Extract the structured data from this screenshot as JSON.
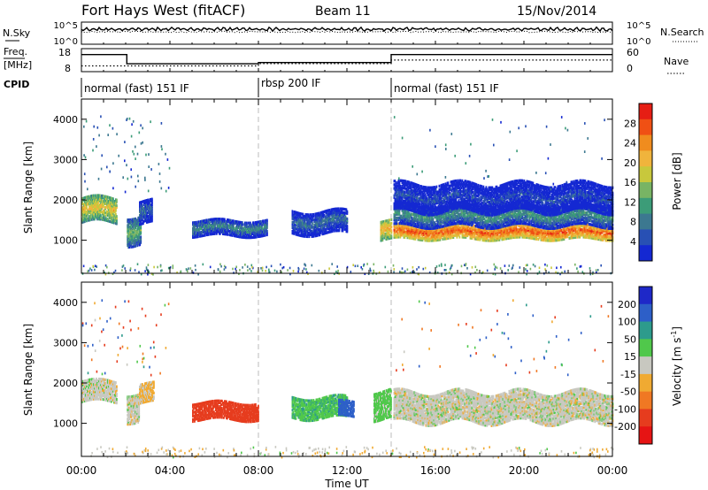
{
  "header": {
    "station": "Fort Hays West (fitACF)",
    "beam": "Beam 11",
    "date": "15/Nov/2014"
  },
  "chart_data": [
    {
      "type": "line",
      "panel": "noise",
      "left_label": "N.Sky",
      "right_label": "N.Search",
      "left_ticks": [
        "10^5",
        "10^0"
      ],
      "right_ticks": [
        "10^5",
        "10^0"
      ]
    },
    {
      "type": "line",
      "panel": "frequency",
      "left_label_top": "Freq.",
      "left_label_bottom": "[MHz]",
      "left_ticks": [
        18,
        8
      ],
      "right_label": "Nave",
      "right_ticks": [
        60,
        0
      ],
      "freq_series": [
        {
          "x": 0,
          "y": 16.5
        },
        {
          "x": 2.05,
          "y": 16.5
        },
        {
          "x": 2.05,
          "y": 10.7
        },
        {
          "x": 8.0,
          "y": 10.7
        },
        {
          "x": 8.0,
          "y": 11.5
        },
        {
          "x": 14.0,
          "y": 11.5
        },
        {
          "x": 14.0,
          "y": 16.5
        },
        {
          "x": 24,
          "y": 16.5
        }
      ],
      "nave_series": [
        {
          "x": 0,
          "y": 15
        },
        {
          "x": 8.0,
          "y": 15
        },
        {
          "x": 8.0,
          "y": 22
        },
        {
          "x": 14.0,
          "y": 22
        },
        {
          "x": 14.0,
          "y": 33
        },
        {
          "x": 24,
          "y": 33
        }
      ]
    },
    {
      "type": "table",
      "panel": "cpid",
      "label": "CPID",
      "segments": [
        {
          "start": 0,
          "end": 8.0,
          "label": "normal (fast) 151 IF"
        },
        {
          "start": 8.0,
          "end": 14.0,
          "label": "rbsp 200 IF"
        },
        {
          "start": 14.0,
          "end": 24,
          "label": "normal (fast) 151 IF"
        }
      ]
    },
    {
      "type": "heatmap",
      "panel": "power",
      "ylabel": "Slant Range [km]",
      "yticks": [
        1000,
        2000,
        3000,
        4000
      ],
      "ylim": [
        180,
        4500
      ],
      "colorbar_label": "Power [dB]",
      "colorbar_ticks": [
        4,
        8,
        12,
        16,
        20,
        24,
        28
      ],
      "colorbar_range": [
        0,
        32
      ],
      "colors": [
        "#1428d2",
        "#2850b4",
        "#3c7890",
        "#3c9c78",
        "#78b464",
        "#c8c83c",
        "#f0b43c",
        "#f08c1e",
        "#f05014",
        "#e61e14"
      ],
      "features": [
        {
          "t0": 0.0,
          "t1": 1.6,
          "r_center": 1800,
          "r_half": 320,
          "value": 20
        },
        {
          "t0": 2.05,
          "t1": 2.7,
          "r_center": 1300,
          "r_half": 350,
          "value": 14
        },
        {
          "t0": 2.6,
          "t1": 3.2,
          "r_center": 1750,
          "r_half": 300,
          "value": 8
        },
        {
          "t0": 5.0,
          "t1": 8.4,
          "r_center": 1350,
          "r_half": 200,
          "value": 10
        },
        {
          "t0": 9.5,
          "t1": 12.0,
          "r_center": 1500,
          "r_half": 300,
          "value": 8
        },
        {
          "t0": 13.5,
          "t1": 14.0,
          "r_center": 1300,
          "r_half": 250,
          "value": 22
        },
        {
          "t0": 14.1,
          "t1": 24.0,
          "r_center": 1250,
          "r_half": 180,
          "value": 27
        },
        {
          "t0": 14.1,
          "t1": 24.0,
          "r_center": 1650,
          "r_half": 260,
          "value": 11
        },
        {
          "t0": 14.1,
          "t1": 24.0,
          "r_center": 2100,
          "r_half": 350,
          "value": 5
        }
      ]
    },
    {
      "type": "heatmap",
      "panel": "velocity",
      "ylabel": "Slant Range [km]",
      "yticks": [
        1000,
        2000,
        3000,
        4000
      ],
      "ylim": [
        180,
        4500
      ],
      "colorbar_label": "Velocity [m s",
      "colorbar_label_sup": "-1",
      "colorbar_label_end": "]",
      "colorbar_ticks": [
        200,
        100,
        50,
        15,
        -15,
        -50,
        -100,
        -200
      ],
      "colors": [
        "#1e28c8",
        "#2d5fc8",
        "#2d9b8c",
        "#50c84b",
        "#c8c8c0",
        "#f0aa32",
        "#f07823",
        "#e63c1e",
        "#e61414"
      ],
      "features": [
        {
          "t0": 0.0,
          "t1": 1.6,
          "r_center": 1850,
          "r_half": 280,
          "value": 0
        },
        {
          "t0": 2.05,
          "t1": 2.6,
          "r_center": 1450,
          "r_half": 350,
          "value": 0
        },
        {
          "t0": 2.6,
          "t1": 3.3,
          "r_center": 1800,
          "r_half": 250,
          "value": -20
        },
        {
          "t0": 5.0,
          "t1": 8.0,
          "r_center": 1350,
          "r_half": 220,
          "value": -150
        },
        {
          "t0": 9.5,
          "t1": 12.0,
          "r_center": 1450,
          "r_half": 280,
          "value": 40
        },
        {
          "t0": 11.6,
          "t1": 12.3,
          "r_center": 1400,
          "r_half": 200,
          "value": 150
        },
        {
          "t0": 13.2,
          "t1": 14.0,
          "r_center": 1500,
          "r_half": 350,
          "value": 30
        },
        {
          "t0": 14.1,
          "t1": 24.0,
          "r_center": 1450,
          "r_half": 380,
          "value": 0
        }
      ]
    }
  ],
  "x_axis": {
    "label": "Time UT",
    "tick_labels": [
      "00:00",
      "04:00",
      "08:00",
      "12:00",
      "16:00",
      "20:00",
      "00:00"
    ]
  }
}
